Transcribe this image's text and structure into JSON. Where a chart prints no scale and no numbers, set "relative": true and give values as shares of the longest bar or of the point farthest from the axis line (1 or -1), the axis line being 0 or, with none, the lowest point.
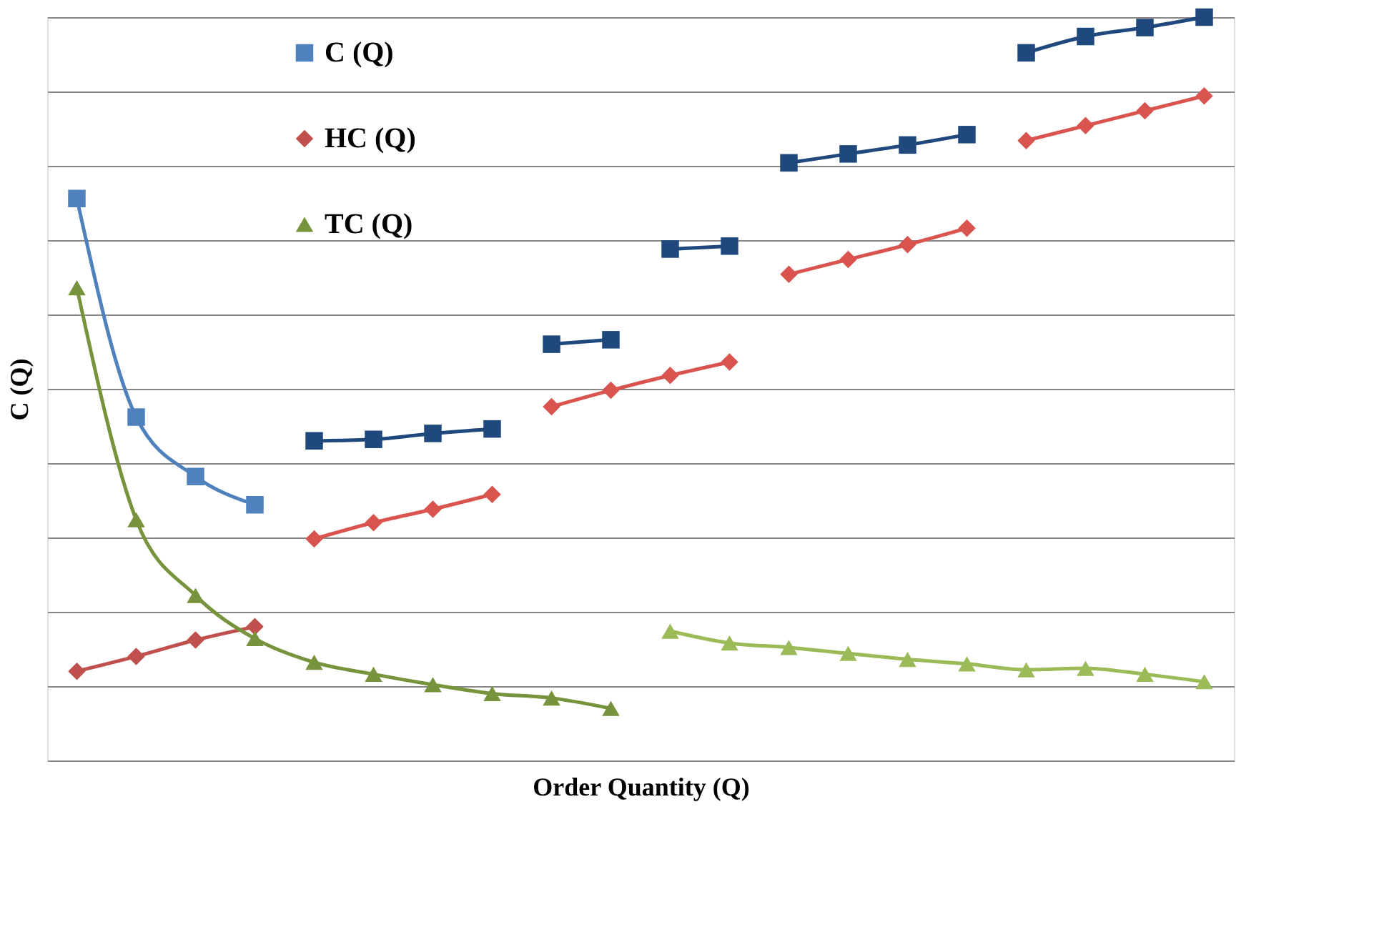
{
  "chart_data": {
    "type": "line",
    "relative": true,
    "xlabel": "Order Quantity (Q)",
    "ylabel": "C (Q)",
    "categories": [
      null,
      null,
      null,
      null,
      null,
      null,
      null,
      null,
      null,
      null,
      null,
      null,
      null,
      null,
      null,
      null,
      null,
      null,
      null,
      null
    ],
    "grid": "y",
    "legend": "top left",
    "series": [
      {
        "name": "C (Q)",
        "color": "#4f81bd",
        "marker": "square",
        "values": [
          0.756,
          0.462,
          0.382,
          0.344,
          null,
          null,
          null,
          null,
          null,
          null,
          null,
          null,
          null,
          null,
          null,
          null,
          null,
          null,
          null,
          null
        ]
      },
      {
        "name": "HC (Q)",
        "color": "#c0504d",
        "marker": "diamond",
        "values": [
          0.12,
          0.14,
          0.162,
          0.18,
          null,
          null,
          null,
          null,
          null,
          null,
          null,
          null,
          null,
          null,
          null,
          null,
          null,
          null,
          null,
          null
        ]
      },
      {
        "name": "TC (Q)",
        "color": "#77933c",
        "marker": "triangle",
        "values": [
          0.636,
          0.324,
          0.222,
          0.164,
          0.132,
          0.116,
          0.102,
          0.09,
          0.084,
          0.07,
          null,
          null,
          null,
          null,
          null,
          null,
          null,
          null,
          null,
          null
        ]
      },
      {
        "color": "#1f497d",
        "marker": "square",
        "values": [
          null,
          null,
          null,
          null,
          0.43,
          0.432,
          0.44,
          0.446,
          null,
          null,
          null,
          null,
          null,
          null,
          null,
          null,
          null,
          null,
          null,
          null
        ]
      },
      {
        "color": "#1f497d",
        "marker": "square",
        "values": [
          null,
          null,
          null,
          null,
          null,
          null,
          null,
          null,
          0.56,
          0.566,
          null,
          null,
          null,
          null,
          null,
          null,
          null,
          null,
          null,
          null
        ]
      },
      {
        "color": "#1f497d",
        "marker": "square",
        "values": [
          null,
          null,
          null,
          null,
          null,
          null,
          null,
          null,
          null,
          null,
          0.688,
          0.692,
          null,
          null,
          null,
          null,
          null,
          null,
          null,
          null
        ]
      },
      {
        "color": "#1f497d",
        "marker": "square",
        "values": [
          null,
          null,
          null,
          null,
          null,
          null,
          null,
          null,
          null,
          null,
          null,
          null,
          0.804,
          0.816,
          0.828,
          0.842,
          null,
          null,
          null,
          null
        ]
      },
      {
        "color": "#1f497d",
        "marker": "square",
        "values": [
          null,
          null,
          null,
          null,
          null,
          null,
          null,
          null,
          null,
          null,
          null,
          null,
          null,
          null,
          null,
          null,
          0.952,
          0.974,
          0.986,
          1.0
        ]
      },
      {
        "color": "#d9534f",
        "marker": "diamond",
        "values": [
          null,
          null,
          null,
          null,
          0.298,
          0.32,
          0.338,
          0.358,
          null,
          null,
          null,
          null,
          null,
          null,
          null,
          null,
          null,
          null,
          null,
          null
        ]
      },
      {
        "color": "#d9534f",
        "marker": "diamond",
        "values": [
          null,
          null,
          null,
          null,
          null,
          null,
          null,
          null,
          0.476,
          0.498,
          0.518,
          0.536,
          null,
          null,
          null,
          null,
          null,
          null,
          null,
          null
        ]
      },
      {
        "color": "#d9534f",
        "marker": "diamond",
        "values": [
          null,
          null,
          null,
          null,
          null,
          null,
          null,
          null,
          null,
          null,
          null,
          null,
          0.654,
          0.674,
          0.694,
          0.716,
          null,
          null,
          null,
          null
        ]
      },
      {
        "color": "#d9534f",
        "marker": "diamond",
        "values": [
          null,
          null,
          null,
          null,
          null,
          null,
          null,
          null,
          null,
          null,
          null,
          null,
          null,
          null,
          null,
          null,
          0.834,
          0.854,
          0.874,
          0.894
        ]
      },
      {
        "color": "#9bbb59",
        "marker": "triangle",
        "values": [
          null,
          null,
          null,
          null,
          null,
          null,
          null,
          null,
          null,
          null,
          0.174,
          0.158,
          0.152,
          0.144,
          0.136,
          0.13,
          0.122,
          0.124,
          0.116,
          0.106
        ]
      }
    ]
  }
}
